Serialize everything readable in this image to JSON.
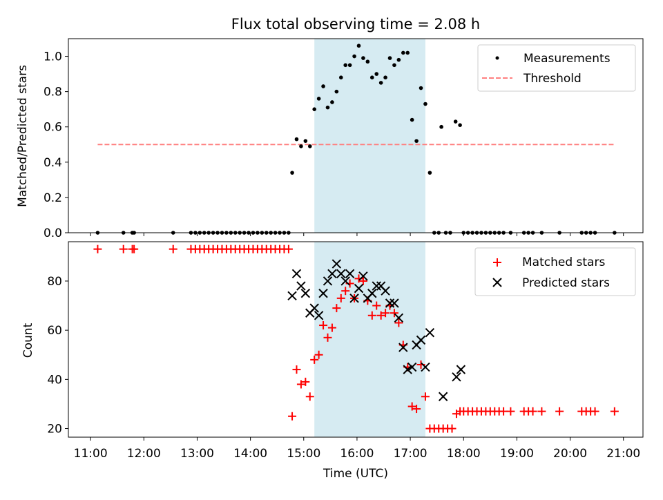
{
  "chart_data": [
    {
      "type": "scatter",
      "title": "Flux total observing time = 2.08 h",
      "ylabel": "Matched/Predicted stars",
      "xlabel": "",
      "ylim": [
        0,
        1.1
      ],
      "yticks": [
        "0.0",
        "0.2",
        "0.4",
        "0.6",
        "0.8",
        "1.0"
      ],
      "ytick_values": [
        0,
        0.2,
        0.4,
        0.6,
        0.8,
        1.0
      ],
      "highlight_span": {
        "from": "15:12",
        "to": "17:17",
        "color": "#add8e6"
      },
      "threshold": {
        "value": 0.5,
        "from": "11:08",
        "to": "20:50",
        "color": "#ff7f7f"
      },
      "legend": {
        "placement": "top-right",
        "entries": [
          "Measurements",
          "Threshold"
        ]
      },
      "series": [
        {
          "name": "Measurements",
          "color": "#000000",
          "points": [
            [
              "11:08",
              0
            ],
            [
              "11:37",
              0
            ],
            [
              "11:47",
              0
            ],
            [
              "11:49",
              0
            ],
            [
              "12:33",
              0
            ],
            [
              "12:53",
              0
            ],
            [
              "12:58",
              0
            ],
            [
              "13:03",
              0
            ],
            [
              "13:08",
              0
            ],
            [
              "13:13",
              0
            ],
            [
              "13:18",
              0
            ],
            [
              "13:23",
              0
            ],
            [
              "13:28",
              0
            ],
            [
              "13:33",
              0
            ],
            [
              "13:38",
              0
            ],
            [
              "13:43",
              0
            ],
            [
              "13:48",
              0
            ],
            [
              "13:53",
              0
            ],
            [
              "13:58",
              0
            ],
            [
              "14:03",
              0
            ],
            [
              "14:08",
              0
            ],
            [
              "14:13",
              0
            ],
            [
              "14:18",
              0
            ],
            [
              "14:23",
              0
            ],
            [
              "14:28",
              0
            ],
            [
              "14:33",
              0
            ],
            [
              "14:38",
              0
            ],
            [
              "14:43",
              0
            ],
            [
              "14:47",
              0.34
            ],
            [
              "14:52",
              0.53
            ],
            [
              "14:57",
              0.49
            ],
            [
              "15:02",
              0.52
            ],
            [
              "15:07",
              0.49
            ],
            [
              "15:12",
              0.7
            ],
            [
              "15:17",
              0.76
            ],
            [
              "15:22",
              0.83
            ],
            [
              "15:27",
              0.71
            ],
            [
              "15:32",
              0.74
            ],
            [
              "15:37",
              0.8
            ],
            [
              "15:42",
              0.88
            ],
            [
              "15:47",
              0.95
            ],
            [
              "15:52",
              0.95
            ],
            [
              "15:57",
              1.0
            ],
            [
              "16:02",
              1.06
            ],
            [
              "16:07",
              0.99
            ],
            [
              "16:12",
              0.97
            ],
            [
              "16:17",
              0.88
            ],
            [
              "16:22",
              0.9
            ],
            [
              "16:27",
              0.85
            ],
            [
              "16:32",
              0.88
            ],
            [
              "16:37",
              0.99
            ],
            [
              "16:42",
              0.95
            ],
            [
              "16:47",
              0.98
            ],
            [
              "16:52",
              1.02
            ],
            [
              "16:57",
              1.02
            ],
            [
              "17:02",
              0.64
            ],
            [
              "17:07",
              0.52
            ],
            [
              "17:12",
              0.82
            ],
            [
              "17:17",
              0.73
            ],
            [
              "17:22",
              0.34
            ],
            [
              "17:27",
              0
            ],
            [
              "17:32",
              0
            ],
            [
              "17:40",
              0
            ],
            [
              "17:45",
              0
            ],
            [
              "17:35",
              0.6
            ],
            [
              "17:51",
              0.63
            ],
            [
              "17:56",
              0.61
            ],
            [
              "18:00",
              0
            ],
            [
              "18:05",
              0
            ],
            [
              "18:10",
              0
            ],
            [
              "18:15",
              0
            ],
            [
              "18:20",
              0
            ],
            [
              "18:25",
              0
            ],
            [
              "18:30",
              0
            ],
            [
              "18:35",
              0
            ],
            [
              "18:40",
              0
            ],
            [
              "18:45",
              0
            ],
            [
              "18:53",
              0
            ],
            [
              "19:08",
              0
            ],
            [
              "19:13",
              0
            ],
            [
              "19:18",
              0
            ],
            [
              "19:28",
              0
            ],
            [
              "19:48",
              0
            ],
            [
              "20:13",
              0
            ],
            [
              "20:18",
              0
            ],
            [
              "20:23",
              0
            ],
            [
              "20:28",
              0
            ],
            [
              "20:50",
              0
            ]
          ]
        }
      ]
    },
    {
      "type": "scatter",
      "title": "",
      "xlabel": "Time (UTC)",
      "ylabel": "Count",
      "ylim": [
        16.5,
        96
      ],
      "yticks": [
        "20",
        "40",
        "60",
        "80"
      ],
      "ytick_values": [
        20,
        40,
        60,
        80
      ],
      "x_range": [
        "10:35",
        "21:22"
      ],
      "xticks": [
        "11:00",
        "12:00",
        "13:00",
        "14:00",
        "15:00",
        "16:00",
        "17:00",
        "18:00",
        "19:00",
        "20:00",
        "21:00"
      ],
      "highlight_span": {
        "from": "15:12",
        "to": "17:17",
        "color": "#add8e6"
      },
      "legend": {
        "placement": "top-right",
        "entries": [
          "Matched stars",
          "Predicted stars"
        ]
      },
      "series": [
        {
          "name": "Matched stars",
          "color": "#ff0000",
          "marker": "plus",
          "points": [
            [
              "11:08",
              93
            ],
            [
              "11:37",
              93
            ],
            [
              "11:47",
              93
            ],
            [
              "11:49",
              93
            ],
            [
              "12:33",
              93
            ],
            [
              "12:53",
              93
            ],
            [
              "12:58",
              93
            ],
            [
              "13:03",
              93
            ],
            [
              "13:08",
              93
            ],
            [
              "13:13",
              93
            ],
            [
              "13:18",
              93
            ],
            [
              "13:23",
              93
            ],
            [
              "13:28",
              93
            ],
            [
              "13:33",
              93
            ],
            [
              "13:38",
              93
            ],
            [
              "13:43",
              93
            ],
            [
              "13:48",
              93
            ],
            [
              "13:53",
              93
            ],
            [
              "13:58",
              93
            ],
            [
              "14:03",
              93
            ],
            [
              "14:08",
              93
            ],
            [
              "14:13",
              93
            ],
            [
              "14:18",
              93
            ],
            [
              "14:23",
              93
            ],
            [
              "14:28",
              93
            ],
            [
              "14:33",
              93
            ],
            [
              "14:38",
              93
            ],
            [
              "14:43",
              93
            ],
            [
              "14:47",
              25
            ],
            [
              "14:52",
              44
            ],
            [
              "14:57",
              38
            ],
            [
              "15:02",
              39
            ],
            [
              "15:07",
              33
            ],
            [
              "15:12",
              48
            ],
            [
              "15:17",
              50
            ],
            [
              "15:22",
              62
            ],
            [
              "15:27",
              57
            ],
            [
              "15:32",
              61
            ],
            [
              "15:37",
              69
            ],
            [
              "15:42",
              73
            ],
            [
              "15:47",
              76
            ],
            [
              "15:52",
              79
            ],
            [
              "15:57",
              73
            ],
            [
              "16:02",
              81
            ],
            [
              "16:07",
              80
            ],
            [
              "16:12",
              72
            ],
            [
              "16:17",
              66
            ],
            [
              "16:22",
              70
            ],
            [
              "16:27",
              66
            ],
            [
              "16:32",
              67
            ],
            [
              "16:37",
              70
            ],
            [
              "16:42",
              67
            ],
            [
              "16:47",
              63
            ],
            [
              "16:52",
              54
            ],
            [
              "16:57",
              45
            ],
            [
              "17:02",
              29
            ],
            [
              "17:07",
              28
            ],
            [
              "17:12",
              46
            ],
            [
              "17:17",
              33
            ],
            [
              "17:22",
              20
            ],
            [
              "17:27",
              20
            ],
            [
              "17:32",
              20
            ],
            [
              "17:37",
              20
            ],
            [
              "17:42",
              20
            ],
            [
              "17:47",
              20
            ],
            [
              "17:52",
              26
            ],
            [
              "17:56",
              27
            ],
            [
              "18:00",
              27
            ],
            [
              "18:05",
              27
            ],
            [
              "18:10",
              27
            ],
            [
              "18:15",
              27
            ],
            [
              "18:20",
              27
            ],
            [
              "18:25",
              27
            ],
            [
              "18:30",
              27
            ],
            [
              "18:35",
              27
            ],
            [
              "18:40",
              27
            ],
            [
              "18:45",
              27
            ],
            [
              "18:53",
              27
            ],
            [
              "19:08",
              27
            ],
            [
              "19:13",
              27
            ],
            [
              "19:18",
              27
            ],
            [
              "19:28",
              27
            ],
            [
              "19:48",
              27
            ],
            [
              "20:13",
              27
            ],
            [
              "20:18",
              27
            ],
            [
              "20:23",
              27
            ],
            [
              "20:28",
              27
            ],
            [
              "20:50",
              27
            ]
          ]
        },
        {
          "name": "Predicted stars",
          "color": "#000000",
          "marker": "x",
          "points": [
            [
              "14:47",
              74
            ],
            [
              "14:52",
              83
            ],
            [
              "14:57",
              78
            ],
            [
              "15:02",
              75
            ],
            [
              "15:07",
              67
            ],
            [
              "15:12",
              69
            ],
            [
              "15:17",
              66
            ],
            [
              "15:22",
              75
            ],
            [
              "15:27",
              80
            ],
            [
              "15:32",
              83
            ],
            [
              "15:37",
              87
            ],
            [
              "15:42",
              83
            ],
            [
              "15:47",
              80
            ],
            [
              "15:52",
              83
            ],
            [
              "15:57",
              73
            ],
            [
              "16:02",
              77
            ],
            [
              "16:07",
              82
            ],
            [
              "16:12",
              73
            ],
            [
              "16:17",
              75
            ],
            [
              "16:22",
              78
            ],
            [
              "16:27",
              78
            ],
            [
              "16:32",
              76
            ],
            [
              "16:37",
              71
            ],
            [
              "16:42",
              71
            ],
            [
              "16:47",
              65
            ],
            [
              "16:52",
              53
            ],
            [
              "16:57",
              44
            ],
            [
              "17:02",
              45
            ],
            [
              "17:07",
              54
            ],
            [
              "17:12",
              56
            ],
            [
              "17:17",
              45
            ],
            [
              "17:22",
              59
            ],
            [
              "17:37",
              33
            ],
            [
              "17:52",
              41
            ],
            [
              "17:57",
              44
            ]
          ]
        }
      ]
    }
  ]
}
